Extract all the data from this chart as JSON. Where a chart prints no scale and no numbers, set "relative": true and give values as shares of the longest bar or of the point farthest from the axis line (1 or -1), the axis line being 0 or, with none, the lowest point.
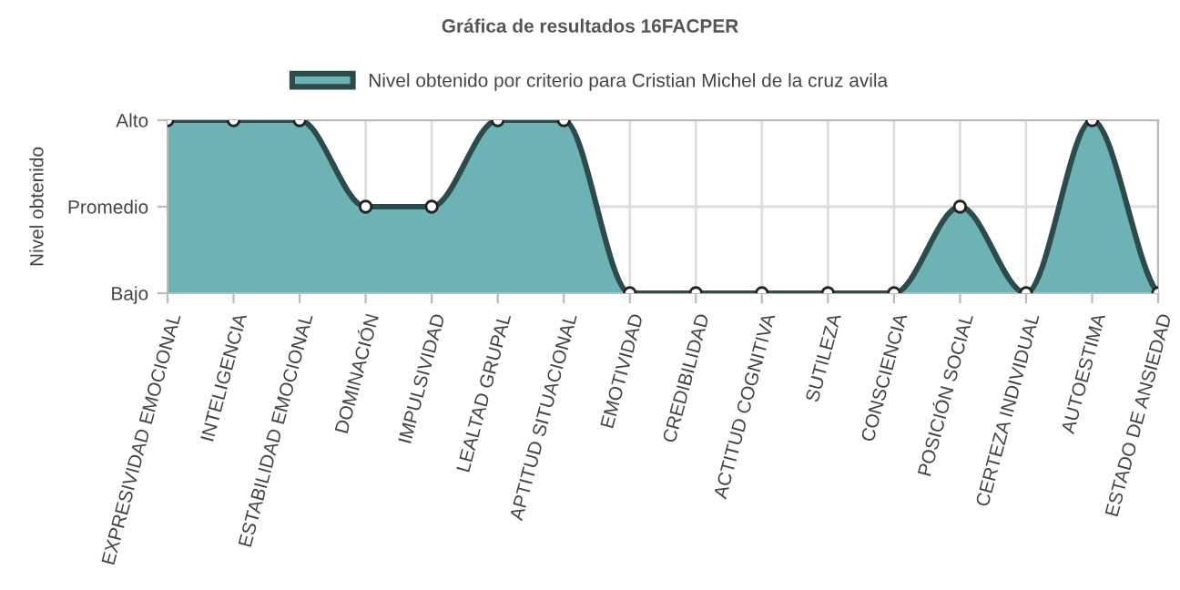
{
  "chart_data": {
    "type": "area",
    "title": "Gráfica de resultados 16FACPER",
    "ylabel": "Nivel obtenido",
    "categories": [
      "EXPRESIVIDAD EMOCIONAL",
      "INTELIGENCIA",
      "ESTABILIDAD EMOCIONAL",
      "DOMINACIÓN",
      "IMPULSIVIDAD",
      "LEALTAD GRUPAL",
      "APTITUD SITUACIONAL",
      "EMOTIVIDAD",
      "CREDIBILIDAD",
      "ACTITUD COGNITIVA",
      "SUTILEZA",
      "CONSCIENCIA",
      "POSICIÓN SOCIAL",
      "CERTEZA INDIVIDUAL",
      "AUTOESTIMA",
      "ESTADO DE ANSIEDAD"
    ],
    "series": [
      {
        "name": "Nivel obtenido por criterio para Cristian Michel de la cruz avila",
        "color": "#6db3b5",
        "values": [
          1,
          1,
          1,
          0.5,
          0.5,
          1,
          1,
          0,
          0,
          0,
          0,
          0,
          0.5,
          0,
          1,
          0
        ]
      }
    ],
    "relative": true,
    "annotations": [
      "Bajo",
      "Promedio",
      "Alto"
    ],
    "grid": true,
    "legend": "top",
    "marker": "circle",
    "line_style": "solid"
  }
}
